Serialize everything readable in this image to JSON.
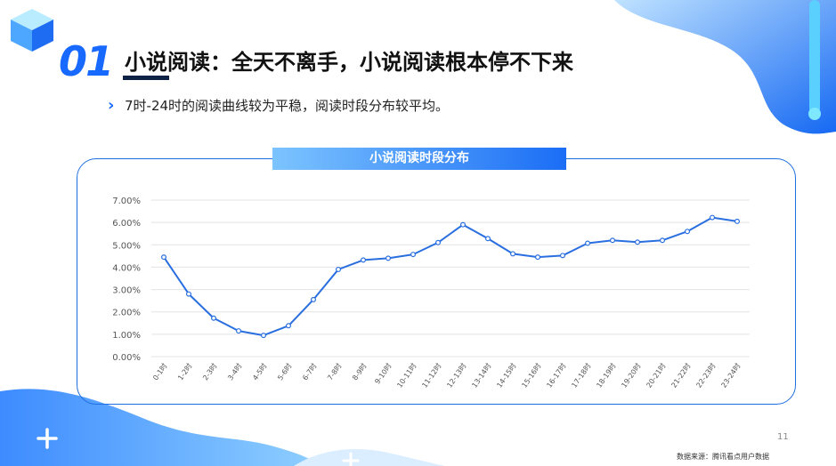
{
  "section": {
    "number": "01",
    "title": "小说阅读：全天不离手，小说阅读根本停不下来"
  },
  "subtitle": {
    "text": "7时-24时的阅读曲线较为平稳，阅读时段分布较平均。"
  },
  "panel": {
    "title": "小说阅读时段分布"
  },
  "footer": {
    "page_number": "11",
    "source": "数据来源：腾讯看点用户数据"
  },
  "colors": {
    "accent": "#1769ff",
    "line": "#2a6fe0",
    "title_dark": "#0e2245"
  },
  "chart_data": {
    "type": "line",
    "title": "小说阅读时段分布",
    "xlabel": "",
    "ylabel": "",
    "ylim": [
      0,
      7
    ],
    "y_ticks": [
      "0.00%",
      "1.00%",
      "2.00%",
      "3.00%",
      "4.00%",
      "5.00%",
      "6.00%",
      "7.00%"
    ],
    "grid": true,
    "categories": [
      "0-1时",
      "1-2时",
      "2-3时",
      "3-4时",
      "4-5时",
      "5-6时",
      "6-7时",
      "7-8时",
      "8-9时",
      "9-10时",
      "10-11时",
      "11-12时",
      "12-13时",
      "13-14时",
      "14-15时",
      "15-16时",
      "16-17时",
      "17-18时",
      "18-19时",
      "19-20时",
      "20-21时",
      "21-22时",
      "22-23时",
      "23-24时"
    ],
    "series": [
      {
        "values": [
          4.45,
          2.8,
          1.72,
          1.15,
          0.95,
          1.38,
          2.55,
          3.9,
          4.32,
          4.4,
          4.57,
          5.1,
          5.9,
          5.28,
          4.6,
          4.45,
          4.52,
          5.07,
          5.2,
          5.12,
          5.2,
          5.6,
          6.22,
          6.05
        ]
      }
    ]
  }
}
